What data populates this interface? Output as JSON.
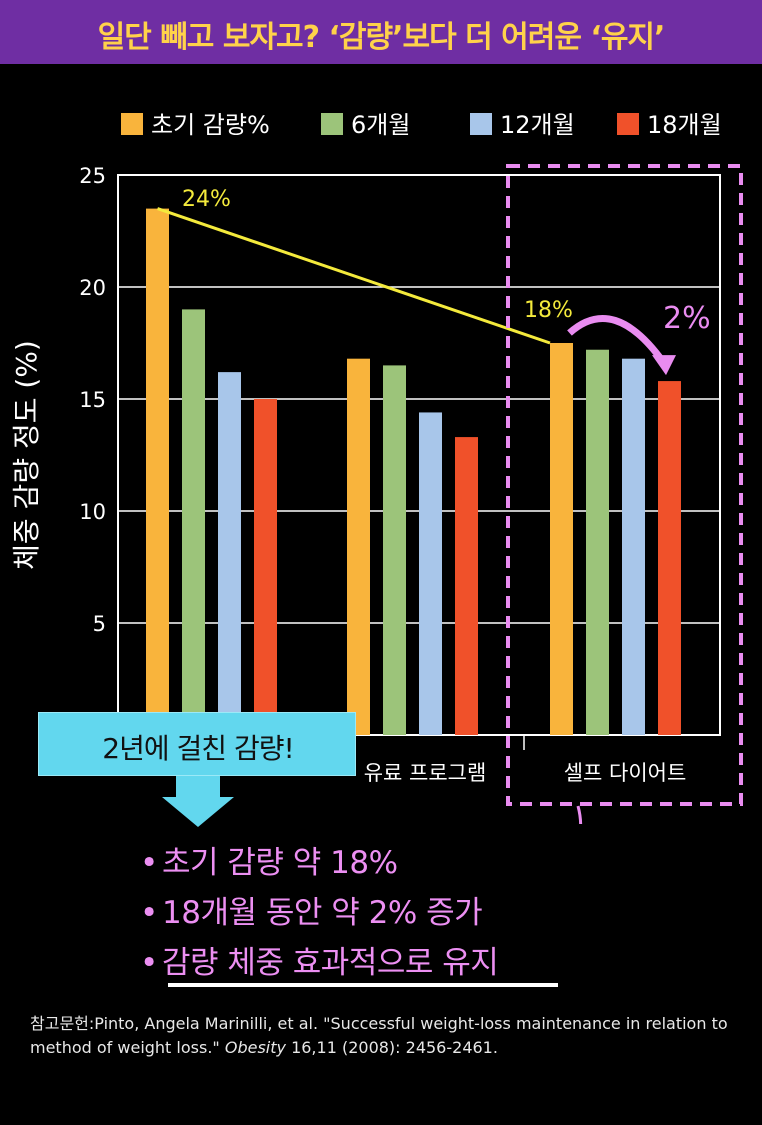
{
  "banner": {
    "title": "일단 빼고 보자고? ‘감량’보다 더 어려운 ‘유지’"
  },
  "chart_data": {
    "type": "bar",
    "ylabel": "체중 감량 정도 (%)",
    "ylim": [
      0,
      25
    ],
    "yticks": [
      5,
      10,
      15,
      20,
      25
    ],
    "categories": [
      "",
      "유료 프로그램",
      "셀프 다이어트"
    ],
    "series": [
      {
        "name": "초기 감량%",
        "color": "#f9b43c",
        "values": [
          23.5,
          16.8,
          17.5
        ]
      },
      {
        "name": "6개월",
        "color": "#9cc47a",
        "values": [
          19.0,
          16.5,
          17.2
        ]
      },
      {
        "name": "12개월",
        "color": "#a8c6ea",
        "values": [
          16.2,
          14.4,
          16.8
        ]
      },
      {
        "name": "18개월",
        "color": "#f0512a",
        "values": [
          15.0,
          13.3,
          15.8
        ]
      }
    ],
    "legend_position": "top",
    "grid": true,
    "annotations": {
      "start_pct": "24%",
      "end_pct": "18%",
      "gain_pct": "2%"
    }
  },
  "callout": {
    "text": "2년에 걸친 감량!"
  },
  "bullets": [
    "초기 감량 약 18%",
    "18개월 동안 약 2% 증가",
    "감량 체중 효과적으로 유지"
  ],
  "reference": {
    "prefix": "참고문헌:Pinto, Angela Marinilli, et al. \"Successful weight-loss maintenance in relation to method of weight loss.\" ",
    "journal": "Obesity",
    "suffix": " 16,11 (2008): 2456-2461."
  }
}
